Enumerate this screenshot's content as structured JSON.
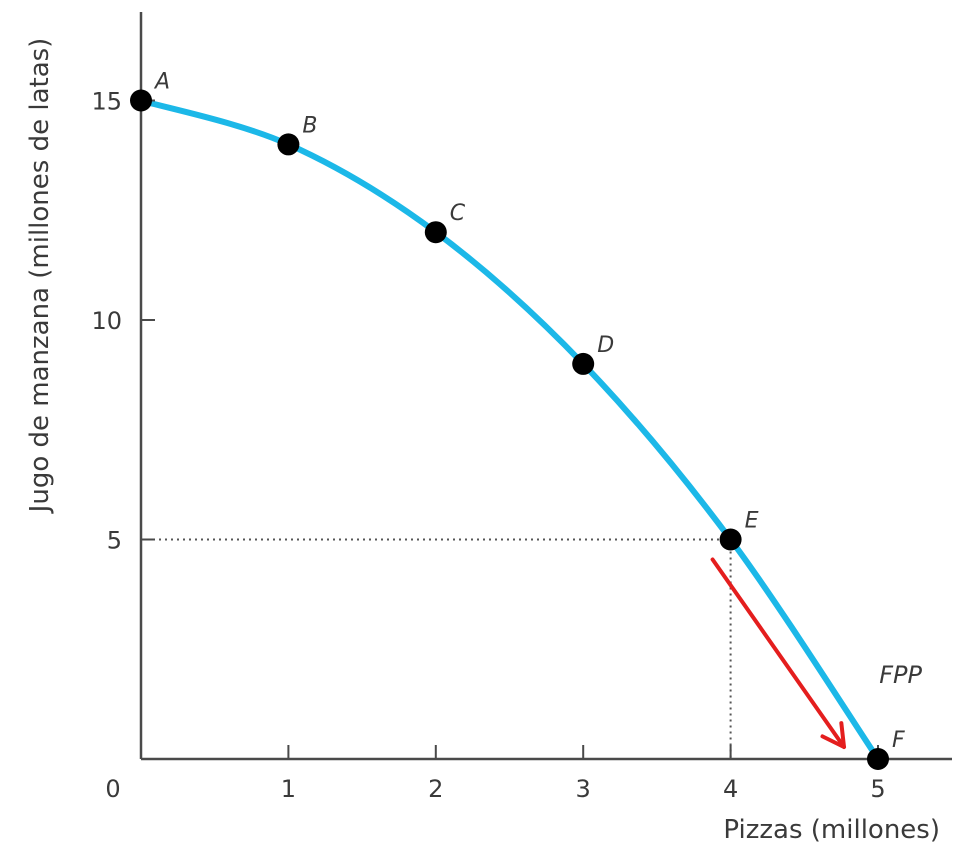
{
  "chart_data": {
    "type": "line",
    "xlabel": "Pizzas (millones)",
    "ylabel": "Jugo de manzana (millones de latas)",
    "xlim": [
      0,
      5
    ],
    "ylim": [
      0,
      15
    ],
    "x_ticks": [
      "0",
      "1",
      "2",
      "3",
      "4",
      "5"
    ],
    "y_ticks": [
      "5",
      "10",
      "15"
    ],
    "grid": false,
    "series": [
      {
        "name": "FPP",
        "color": "#1cb8e8"
      }
    ],
    "points": [
      {
        "label": "A",
        "x": 0,
        "y": 15
      },
      {
        "label": "B",
        "x": 1,
        "y": 14
      },
      {
        "label": "C",
        "x": 2,
        "y": 12
      },
      {
        "label": "D",
        "x": 3,
        "y": 9
      },
      {
        "label": "E",
        "x": 4,
        "y": 5
      },
      {
        "label": "F",
        "x": 5,
        "y": 0
      }
    ],
    "reference_lines": [
      {
        "from_point": "E",
        "style": "dotted"
      }
    ],
    "arrow": {
      "from": "E",
      "to": "F",
      "color": "#e41e1e"
    }
  }
}
